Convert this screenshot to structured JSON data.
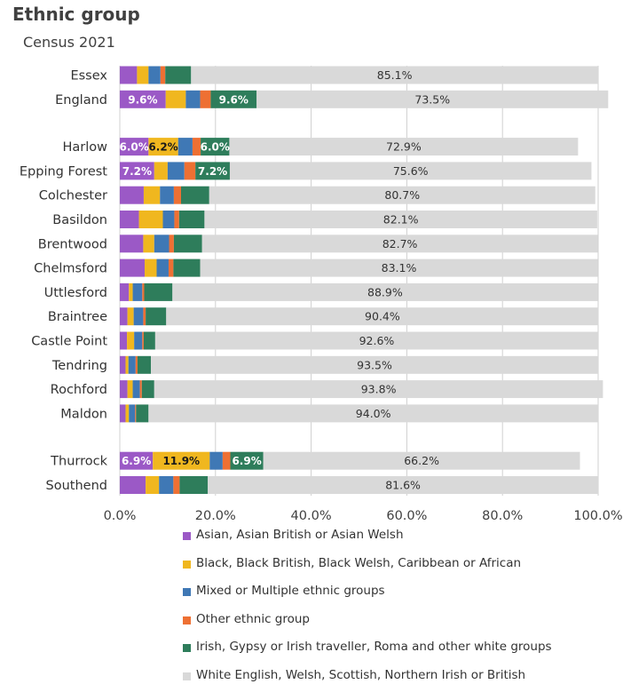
{
  "title": "Ethnic group",
  "subtitle": "Census 2021",
  "chart_data": {
    "type": "bar",
    "orientation": "horizontal",
    "stacked": true,
    "title": "Ethnic group",
    "subtitle": "Census 2021",
    "categories": [
      "Essex",
      "England",
      "Harlow",
      "Epping Forest",
      "Colchester",
      "Basildon",
      "Brentwood",
      "Chelmsford",
      "Uttlesford",
      "Braintree",
      "Castle Point",
      "Tendring",
      "Rochford",
      "Maldon",
      "Thurrock",
      "Southend"
    ],
    "group_gaps_before": [
      "Harlow",
      "Thurrock"
    ],
    "xlim": [
      0,
      100
    ],
    "xticks": [
      "0.0%",
      "20.0%",
      "40.0%",
      "60.0%",
      "80.0%",
      "100.0%"
    ],
    "grid": "vertical",
    "legend_position": "bottom",
    "series": [
      {
        "name": "Asian, Asian British or Asian Welsh",
        "color": "#9b59c6",
        "values": [
          3.6,
          9.6,
          6.0,
          7.2,
          5.0,
          4.0,
          4.9,
          5.2,
          1.9,
          1.6,
          1.5,
          1.2,
          1.6,
          1.2,
          6.9,
          5.4
        ],
        "labels": [
          "",
          "9.6%",
          "6.0%",
          "7.2%",
          "",
          "",
          "",
          "",
          "",
          "",
          "",
          "",
          "",
          "",
          "6.9%",
          ""
        ]
      },
      {
        "name": "Black, Black British, Black Welsh, Caribbean or African",
        "color": "#f0b71f",
        "values": [
          2.4,
          4.2,
          6.2,
          2.8,
          3.4,
          5.0,
          2.3,
          2.5,
          0.8,
          1.3,
          1.5,
          0.6,
          1.1,
          0.7,
          11.9,
          2.8
        ],
        "labels": [
          "",
          "",
          "6.2%",
          "",
          "",
          "",
          "",
          "",
          "",
          "",
          "",
          "",
          "",
          "",
          "11.9%",
          ""
        ]
      },
      {
        "name": "Mixed or Multiple ethnic groups",
        "color": "#3f78b5",
        "values": [
          2.5,
          3.0,
          3.0,
          3.5,
          2.9,
          2.4,
          3.1,
          2.5,
          2.0,
          2.0,
          1.7,
          1.5,
          1.5,
          1.3,
          2.7,
          3.0
        ],
        "labels": [
          "",
          "",
          "",
          "",
          "",
          "",
          "",
          "",
          "",
          "",
          "",
          "",
          "",
          "",
          "",
          ""
        ]
      },
      {
        "name": "Other ethnic group",
        "color": "#ee7033",
        "values": [
          1.0,
          2.2,
          1.7,
          2.3,
          1.5,
          1.0,
          1.0,
          1.0,
          0.4,
          0.5,
          0.3,
          0.4,
          0.4,
          0.2,
          1.6,
          1.3
        ],
        "labels": [
          "",
          "",
          "",
          "",
          "",
          "",
          "",
          "",
          "",
          "",
          "",
          "",
          "",
          "",
          "",
          ""
        ]
      },
      {
        "name": "Irish, Gypsy or Irish traveller, Roma and other white groups",
        "color": "#2e7d5b",
        "values": [
          5.4,
          9.6,
          6.0,
          7.2,
          5.9,
          5.3,
          5.9,
          5.6,
          5.9,
          4.3,
          2.4,
          2.8,
          2.6,
          2.6,
          6.9,
          5.9
        ],
        "labels": [
          "",
          "9.6%",
          "6.0%",
          "7.2%",
          "",
          "",
          "",
          "",
          "",
          "",
          "",
          "",
          "",
          "",
          "6.9%",
          ""
        ]
      },
      {
        "name": "White English, Welsh, Scottish, Northern Irish or British",
        "color": "#d9d9d9",
        "values": [
          85.1,
          73.5,
          72.9,
          75.6,
          80.7,
          82.1,
          82.7,
          83.1,
          88.9,
          90.4,
          92.6,
          93.5,
          93.8,
          94.0,
          66.2,
          81.6
        ],
        "labels": [
          "85.1%",
          "73.5%",
          "72.9%",
          "75.6%",
          "80.7%",
          "82.1%",
          "82.7%",
          "83.1%",
          "88.9%",
          "90.4%",
          "92.6%",
          "93.5%",
          "93.8%",
          "94.0%",
          "66.2%",
          "81.6%"
        ]
      }
    ]
  }
}
